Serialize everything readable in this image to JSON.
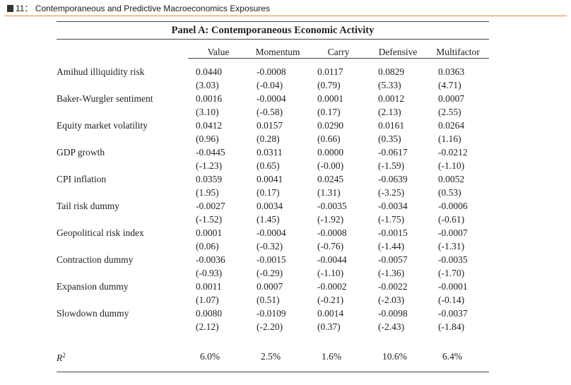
{
  "figure_title": "11： Contemporaneous and Predictive Macroeconomics Exposures",
  "panel_title": "Panel A:  Contemporaneous Economic Activity",
  "columns": [
    "Value",
    "Momentum",
    "Carry",
    "Defensive",
    "Multifactor"
  ],
  "rows": [
    {
      "label": "Amihud illiquidity risk",
      "coef": [
        "0.0440",
        "-0.0008",
        "0.0117",
        "0.0829",
        "0.0363"
      ],
      "tstat": [
        "(3.03)",
        "(-0.04)",
        "(0.79)",
        "(5.33)",
        "(4.71)"
      ]
    },
    {
      "label": "Baker-Wurgler sentiment",
      "coef": [
        "0.0016",
        "-0.0004",
        "0.0001",
        "0.0012",
        "0.0007"
      ],
      "tstat": [
        "(3.10)",
        "(-0.58)",
        "(0.17)",
        "(2.13)",
        "(2.55)"
      ]
    },
    {
      "label": "Equity market volatility",
      "coef": [
        "0.0412",
        "0.0157",
        "0.0290",
        "0.0161",
        "0.0264"
      ],
      "tstat": [
        "(0.96)",
        "(0.28)",
        "(0.66)",
        "(0.35)",
        "(1.16)"
      ]
    },
    {
      "label": "GDP growth",
      "coef": [
        "-0.0445",
        "0.0311",
        "0.0000",
        "-0.0617",
        "-0.0212"
      ],
      "tstat": [
        "(-1.23)",
        "(0.65)",
        "(-0.00)",
        "(-1.59)",
        "(-1.10)"
      ]
    },
    {
      "label": "CPI inflation",
      "coef": [
        "0.0359",
        "0.0041",
        "0.0245",
        "-0.0639",
        "0.0052"
      ],
      "tstat": [
        "(1.95)",
        "(0.17)",
        "(1.31)",
        "(-3.25)",
        "(0.53)"
      ]
    },
    {
      "label": "Tail risk dummy",
      "coef": [
        "-0.0027",
        "0.0034",
        "-0.0035",
        "-0.0034",
        "-0.0006"
      ],
      "tstat": [
        "(-1.52)",
        "(1.45)",
        "(-1.92)",
        "(-1.75)",
        "(-0.61)"
      ]
    },
    {
      "label": "Geopolitical risk index",
      "coef": [
        "0.0001",
        "-0.0004",
        "-0.0008",
        "-0.0015",
        "-0.0007"
      ],
      "tstat": [
        "(0.06)",
        "(-0.32)",
        "(-0.76)",
        "(-1.44)",
        "(-1.31)"
      ]
    },
    {
      "label": "Contraction dummy",
      "coef": [
        "-0.0036",
        "-0.0015",
        "-0.0044",
        "-0.0057",
        "-0.0035"
      ],
      "tstat": [
        "(-0.93)",
        "(-0.29)",
        "(-1.10)",
        "(-1.36)",
        "(-1.70)"
      ]
    },
    {
      "label": "Expansion dummy",
      "coef": [
        "0.0011",
        "0.0007",
        "-0.0002",
        "-0.0022",
        "-0.0001"
      ],
      "tstat": [
        "(1.07)",
        "(0.51)",
        "(-0.21)",
        "(-2.03)",
        "(-0.14)"
      ]
    },
    {
      "label": "Slowdown dummy",
      "coef": [
        "0.0080",
        "-0.0109",
        "0.0014",
        "-0.0098",
        "-0.0037"
      ],
      "tstat": [
        "(2.12)",
        "(-2.20)",
        "(0.37)",
        "(-2.43)",
        "(-1.84)"
      ]
    }
  ],
  "r2": {
    "label": "R",
    "sup": "2",
    "values": [
      "6.0%",
      "2.5%",
      "1.6%",
      "10.6%",
      "6.4%"
    ]
  }
}
